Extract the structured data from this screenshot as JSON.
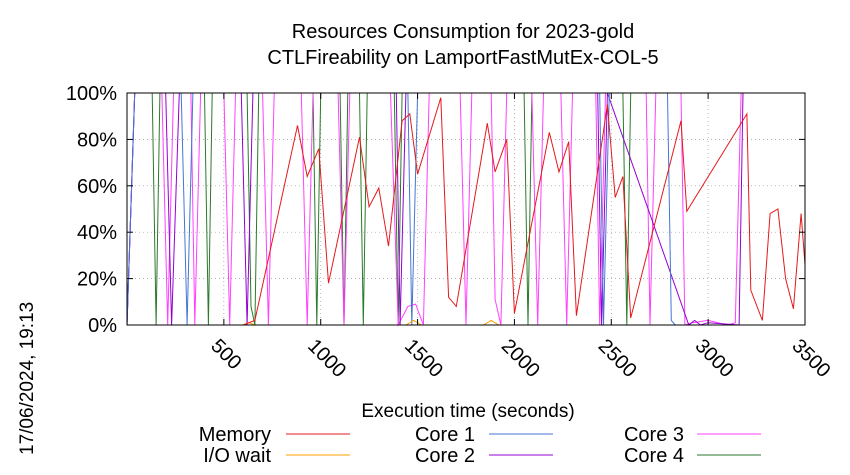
{
  "chart_data": {
    "type": "line",
    "title": "Resources Consumption for 2023-gold",
    "subtitle": "CTLFireability on LamportFastMutEx-COL-5",
    "xlabel": "Execution time (seconds)",
    "ylabel": "",
    "xlim": [
      0,
      3500
    ],
    "ylim": [
      0,
      100
    ],
    "x_ticks": [
      500,
      1000,
      1500,
      2000,
      2500,
      3000,
      3500
    ],
    "y_ticks": [
      0,
      20,
      40,
      60,
      80,
      100
    ],
    "y_tick_labels": [
      "0%",
      "20%",
      "40%",
      "60%",
      "80%",
      "100%"
    ],
    "x_tick_labels": [
      "500",
      "1000",
      "1500",
      "2000",
      "2500",
      "3000",
      "3500"
    ],
    "grid": true,
    "legend_position": "bottom",
    "timestamp": "17/06/2024, 19:13",
    "series": [
      {
        "name": "Memory",
        "color": "#e41a1c",
        "points": [
          [
            0,
            0
          ],
          [
            50,
            0
          ],
          [
            300,
            0
          ],
          [
            600,
            0
          ],
          [
            660,
            2
          ],
          [
            880,
            86
          ],
          [
            930,
            64
          ],
          [
            990,
            76
          ],
          [
            1040,
            18
          ],
          [
            1200,
            81
          ],
          [
            1250,
            51
          ],
          [
            1300,
            59
          ],
          [
            1350,
            34
          ],
          [
            1420,
            88
          ],
          [
            1460,
            91
          ],
          [
            1500,
            65
          ],
          [
            1620,
            98
          ],
          [
            1660,
            12
          ],
          [
            1700,
            8
          ],
          [
            1860,
            87
          ],
          [
            1900,
            66
          ],
          [
            1960,
            80
          ],
          [
            2000,
            5
          ],
          [
            2180,
            83
          ],
          [
            2230,
            66
          ],
          [
            2280,
            79
          ],
          [
            2320,
            4
          ],
          [
            2480,
            95
          ],
          [
            2520,
            55
          ],
          [
            2560,
            64
          ],
          [
            2600,
            3
          ],
          [
            2860,
            88
          ],
          [
            2890,
            49
          ],
          [
            3200,
            91
          ],
          [
            3220,
            15
          ],
          [
            3280,
            2
          ],
          [
            3320,
            48
          ],
          [
            3360,
            50
          ],
          [
            3400,
            20
          ],
          [
            3440,
            7
          ],
          [
            3480,
            48
          ],
          [
            3500,
            26
          ]
        ]
      },
      {
        "name": "I/O wait",
        "color": "#ff9f00",
        "points": [
          [
            0,
            0
          ],
          [
            500,
            0
          ],
          [
            600,
            0
          ],
          [
            630,
            1
          ],
          [
            660,
            0
          ],
          [
            1440,
            0
          ],
          [
            1480,
            2
          ],
          [
            1520,
            0
          ],
          [
            1840,
            0
          ],
          [
            1880,
            2
          ],
          [
            1920,
            0
          ],
          [
            3500,
            0
          ]
        ]
      },
      {
        "name": "Core 1",
        "color": "#4575d6",
        "points": [
          [
            0,
            0
          ],
          [
            40,
            100
          ],
          [
            280,
            100
          ],
          [
            310,
            0
          ],
          [
            340,
            100
          ],
          [
            1450,
            100
          ],
          [
            1470,
            0
          ],
          [
            1500,
            100
          ],
          [
            2440,
            100
          ],
          [
            2460,
            0
          ],
          [
            2490,
            100
          ],
          [
            2790,
            100
          ],
          [
            2810,
            2
          ],
          [
            2830,
            0
          ],
          [
            3500,
            0
          ]
        ]
      },
      {
        "name": "Core 2",
        "color": "#9400d3",
        "points": [
          [
            0,
            0
          ],
          [
            40,
            100
          ],
          [
            200,
            100
          ],
          [
            230,
            0
          ],
          [
            270,
            100
          ],
          [
            590,
            100
          ],
          [
            620,
            0
          ],
          [
            650,
            100
          ],
          [
            1390,
            100
          ],
          [
            1410,
            0
          ],
          [
            1440,
            100
          ],
          [
            2430,
            100
          ],
          [
            2450,
            0
          ],
          [
            2480,
            100
          ],
          [
            2900,
            0
          ],
          [
            2930,
            2
          ],
          [
            2960,
            0
          ],
          [
            3000,
            1
          ],
          [
            3160,
            0
          ],
          [
            3180,
            100
          ],
          [
            3500,
            100
          ]
        ]
      },
      {
        "name": "Core 3",
        "color": "#ff40ff",
        "points": [
          [
            0,
            0
          ],
          [
            40,
            100
          ],
          [
            180,
            100
          ],
          [
            210,
            0
          ],
          [
            240,
            100
          ],
          [
            330,
            100
          ],
          [
            350,
            0
          ],
          [
            380,
            100
          ],
          [
            500,
            100
          ],
          [
            530,
            0
          ],
          [
            560,
            100
          ],
          [
            700,
            100
          ],
          [
            730,
            0
          ],
          [
            760,
            100
          ],
          [
            900,
            100
          ],
          [
            930,
            0
          ],
          [
            960,
            100
          ],
          [
            1090,
            100
          ],
          [
            1120,
            0
          ],
          [
            1150,
            100
          ],
          [
            1360,
            100
          ],
          [
            1400,
            0
          ],
          [
            1450,
            8
          ],
          [
            1490,
            9
          ],
          [
            1530,
            0
          ],
          [
            1560,
            100
          ],
          [
            1720,
            100
          ],
          [
            1750,
            0
          ],
          [
            1780,
            100
          ],
          [
            1880,
            100
          ],
          [
            1900,
            11
          ],
          [
            1930,
            0
          ],
          [
            1960,
            100
          ],
          [
            2090,
            100
          ],
          [
            2120,
            0
          ],
          [
            2150,
            100
          ],
          [
            2240,
            100
          ],
          [
            2270,
            0
          ],
          [
            2300,
            100
          ],
          [
            2420,
            100
          ],
          [
            2440,
            0
          ],
          [
            2470,
            100
          ],
          [
            2680,
            100
          ],
          [
            2700,
            0
          ],
          [
            2730,
            100
          ],
          [
            2860,
            100
          ],
          [
            2880,
            0
          ],
          [
            2920,
            1
          ],
          [
            3000,
            2
          ],
          [
            3100,
            0
          ],
          [
            3140,
            1
          ],
          [
            3170,
            100
          ],
          [
            3500,
            100
          ]
        ]
      },
      {
        "name": "Core 4",
        "color": "#2a7a2a",
        "points": [
          [
            0,
            0
          ],
          [
            40,
            100
          ],
          [
            130,
            100
          ],
          [
            150,
            0
          ],
          [
            170,
            100
          ],
          [
            400,
            100
          ],
          [
            420,
            0
          ],
          [
            440,
            100
          ],
          [
            620,
            100
          ],
          [
            640,
            8
          ],
          [
            660,
            0
          ],
          [
            680,
            100
          ],
          [
            960,
            100
          ],
          [
            980,
            0
          ],
          [
            1000,
            100
          ],
          [
            1100,
            100
          ],
          [
            1120,
            0
          ],
          [
            1140,
            100
          ],
          [
            1200,
            100
          ],
          [
            1220,
            0
          ],
          [
            1240,
            100
          ],
          [
            1380,
            100
          ],
          [
            1400,
            0
          ],
          [
            1420,
            100
          ],
          [
            2050,
            100
          ],
          [
            2070,
            0
          ],
          [
            2090,
            100
          ],
          [
            2560,
            100
          ],
          [
            2580,
            0
          ],
          [
            2600,
            100
          ],
          [
            3500,
            100
          ]
        ]
      }
    ]
  }
}
